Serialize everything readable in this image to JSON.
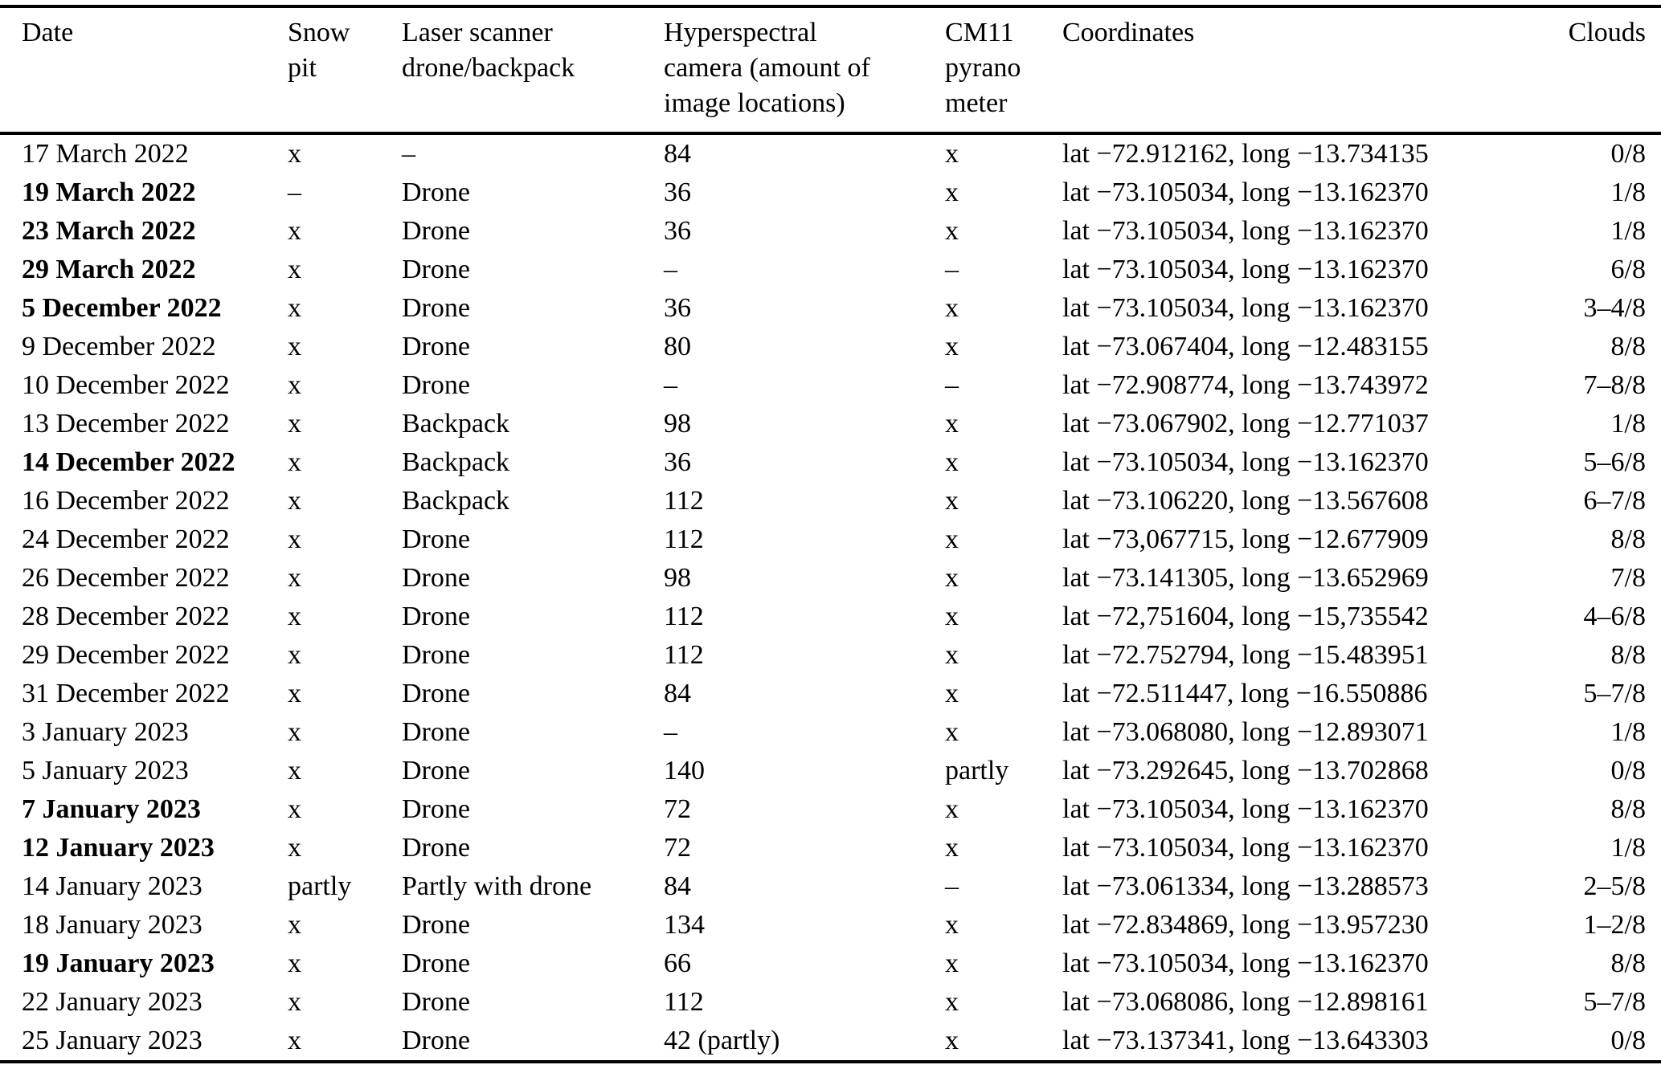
{
  "table": {
    "columns": [
      {
        "label": "Date"
      },
      {
        "label": "Snow\npit"
      },
      {
        "label": "Laser scanner\ndrone/backpack"
      },
      {
        "label": "Hyperspectral\ncamera (amount of\nimage locations)"
      },
      {
        "label": "CM11\npyrano\nmeter"
      },
      {
        "label": "Coordinates"
      },
      {
        "label": "Clouds"
      }
    ],
    "rows": [
      {
        "date": "17 March 2022",
        "bold": false,
        "snow_pit": "x",
        "laser": "–",
        "hyperspectral": "84",
        "pyranometer": "x",
        "coordinates": "lat −72.912162, long −13.734135",
        "clouds": "0/8"
      },
      {
        "date": "19 March 2022",
        "bold": true,
        "snow_pit": "–",
        "laser": "Drone",
        "hyperspectral": "36",
        "pyranometer": "x",
        "coordinates": "lat −73.105034, long −13.162370",
        "clouds": "1/8"
      },
      {
        "date": "23 March 2022",
        "bold": true,
        "snow_pit": "x",
        "laser": "Drone",
        "hyperspectral": "36",
        "pyranometer": "x",
        "coordinates": "lat −73.105034, long −13.162370",
        "clouds": "1/8"
      },
      {
        "date": "29 March 2022",
        "bold": true,
        "snow_pit": "x",
        "laser": "Drone",
        "hyperspectral": "–",
        "pyranometer": "–",
        "coordinates": "lat −73.105034, long −13.162370",
        "clouds": "6/8"
      },
      {
        "date": "5 December 2022",
        "bold": true,
        "snow_pit": "x",
        "laser": "Drone",
        "hyperspectral": "36",
        "pyranometer": "x",
        "coordinates": "lat −73.105034, long −13.162370",
        "clouds": "3–4/8"
      },
      {
        "date": "9 December 2022",
        "bold": false,
        "snow_pit": "x",
        "laser": "Drone",
        "hyperspectral": "80",
        "pyranometer": "x",
        "coordinates": "lat −73.067404, long −12.483155",
        "clouds": "8/8"
      },
      {
        "date": "10 December 2022",
        "bold": false,
        "snow_pit": "x",
        "laser": "Drone",
        "hyperspectral": "–",
        "pyranometer": "–",
        "coordinates": "lat −72.908774, long −13.743972",
        "clouds": "7–8/8"
      },
      {
        "date": "13 December 2022",
        "bold": false,
        "snow_pit": "x",
        "laser": "Backpack",
        "hyperspectral": "98",
        "pyranometer": "x",
        "coordinates": "lat −73.067902, long −12.771037",
        "clouds": "1/8"
      },
      {
        "date": "14 December 2022",
        "bold": true,
        "snow_pit": "x",
        "laser": "Backpack",
        "hyperspectral": "36",
        "pyranometer": "x",
        "coordinates": "lat −73.105034, long −13.162370",
        "clouds": "5–6/8"
      },
      {
        "date": "16 December 2022",
        "bold": false,
        "snow_pit": "x",
        "laser": "Backpack",
        "hyperspectral": "112",
        "pyranometer": "x",
        "coordinates": "lat −73.106220, long −13.567608",
        "clouds": "6–7/8"
      },
      {
        "date": "24 December 2022",
        "bold": false,
        "snow_pit": "x",
        "laser": "Drone",
        "hyperspectral": "112",
        "pyranometer": "x",
        "coordinates": "lat −73,067715, long −12.677909",
        "clouds": "8/8"
      },
      {
        "date": "26 December 2022",
        "bold": false,
        "snow_pit": "x",
        "laser": "Drone",
        "hyperspectral": "98",
        "pyranometer": "x",
        "coordinates": "lat −73.141305, long −13.652969",
        "clouds": "7/8"
      },
      {
        "date": "28 December 2022",
        "bold": false,
        "snow_pit": "x",
        "laser": "Drone",
        "hyperspectral": "112",
        "pyranometer": "x",
        "coordinates": "lat −72,751604, long −15,735542",
        "clouds": "4–6/8"
      },
      {
        "date": "29 December 2022",
        "bold": false,
        "snow_pit": "x",
        "laser": "Drone",
        "hyperspectral": "112",
        "pyranometer": "x",
        "coordinates": "lat −72.752794, long −15.483951",
        "clouds": "8/8"
      },
      {
        "date": "31 December 2022",
        "bold": false,
        "snow_pit": "x",
        "laser": "Drone",
        "hyperspectral": "84",
        "pyranometer": "x",
        "coordinates": "lat −72.511447, long −16.550886",
        "clouds": "5–7/8"
      },
      {
        "date": "3 January 2023",
        "bold": false,
        "snow_pit": "x",
        "laser": "Drone",
        "hyperspectral": "–",
        "pyranometer": "x",
        "coordinates": "lat −73.068080, long −12.893071",
        "clouds": "1/8"
      },
      {
        "date": "5 January 2023",
        "bold": false,
        "snow_pit": "x",
        "laser": "Drone",
        "hyperspectral": "140",
        "pyranometer": "partly",
        "coordinates": "lat −73.292645, long −13.702868",
        "clouds": "0/8"
      },
      {
        "date": "7 January 2023",
        "bold": true,
        "snow_pit": "x",
        "laser": "Drone",
        "hyperspectral": "72",
        "pyranometer": "x",
        "coordinates": "lat −73.105034, long −13.162370",
        "clouds": "8/8"
      },
      {
        "date": "12 January 2023",
        "bold": true,
        "snow_pit": "x",
        "laser": "Drone",
        "hyperspectral": "72",
        "pyranometer": "x",
        "coordinates": "lat −73.105034, long −13.162370",
        "clouds": "1/8"
      },
      {
        "date": "14 January 2023",
        "bold": false,
        "snow_pit": "partly",
        "laser": "Partly with drone",
        "hyperspectral": "84",
        "pyranometer": "–",
        "coordinates": "lat −73.061334, long −13.288573",
        "clouds": "2–5/8"
      },
      {
        "date": "18 January 2023",
        "bold": false,
        "snow_pit": "x",
        "laser": "Drone",
        "hyperspectral": "134",
        "pyranometer": "x",
        "coordinates": "lat −72.834869, long −13.957230",
        "clouds": "1–2/8"
      },
      {
        "date": "19 January 2023",
        "bold": true,
        "snow_pit": "x",
        "laser": "Drone",
        "hyperspectral": "66",
        "pyranometer": "x",
        "coordinates": "lat −73.105034, long −13.162370",
        "clouds": "8/8"
      },
      {
        "date": "22 January 2023",
        "bold": false,
        "snow_pit": "x",
        "laser": "Drone",
        "hyperspectral": "112",
        "pyranometer": "x",
        "coordinates": "lat −73.068086, long −12.898161",
        "clouds": "5–7/8"
      },
      {
        "date": "25 January 2023",
        "bold": false,
        "snow_pit": "x",
        "laser": "Drone",
        "hyperspectral": "42 (partly)",
        "pyranometer": "x",
        "coordinates": "lat −73.137341, long −13.643303",
        "clouds": "0/8"
      }
    ]
  }
}
